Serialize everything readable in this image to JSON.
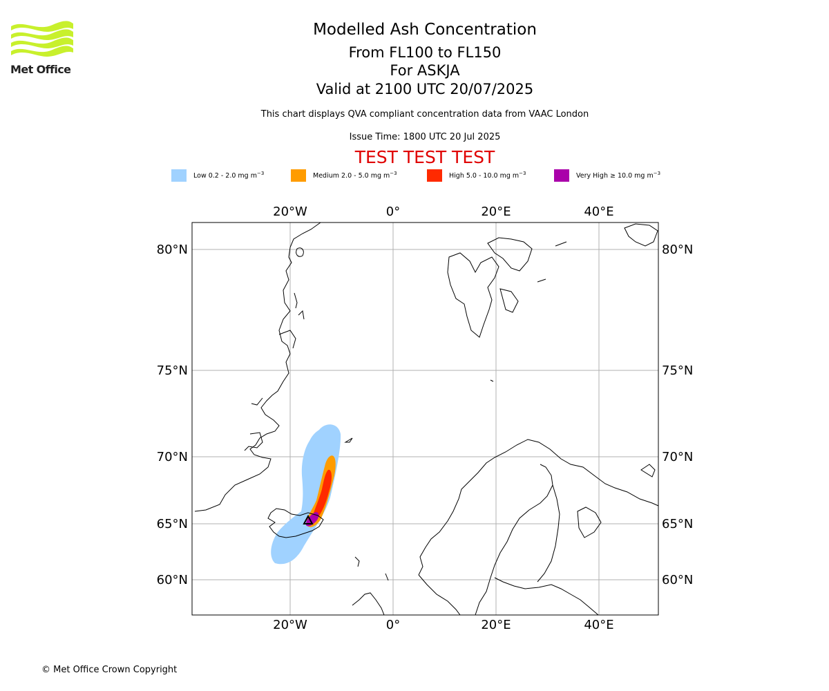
{
  "header": {
    "logo_text": "Met Office",
    "title": "Modelled Ash Concentration",
    "levels": "From FL100 to FL150",
    "volcano": "For ASKJA",
    "valid": "Valid at 2100 UTC 20/07/2025",
    "subtitle": "This chart displays QVA compliant concentration data from VAAC London",
    "issue_time": "Issue Time: 1800 UTC 20 Jul 2025",
    "test_banner": "TEST TEST TEST"
  },
  "legend": [
    {
      "label": "Low 0.2 - 2.0 mg m",
      "exp": "−3",
      "color": "#a0d2ff"
    },
    {
      "label": "Medium 2.0 - 5.0 mg m",
      "exp": "−3",
      "color": "#ff9c00"
    },
    {
      "label": "High 5.0 - 10.0 mg m",
      "exp": "−3",
      "color": "#ff2a00"
    },
    {
      "label": "Very High ≥ 10.0 mg m",
      "exp": "−3",
      "color": "#aa00aa"
    }
  ],
  "map": {
    "lon_ticks_top": [
      "20°W",
      "0°",
      "20°E",
      "40°E"
    ],
    "lon_ticks_bottom": [
      "20°W",
      "0°",
      "20°E",
      "40°E"
    ],
    "lat_ticks_left": [
      "80°N",
      "75°N",
      "70°N",
      "65°N",
      "60°N"
    ],
    "lat_ticks_right": [
      "80°N",
      "75°N",
      "70°N",
      "65°N",
      "60°N"
    ],
    "grid": true,
    "grid_color": "#b0b0b0",
    "coast_color": "#000000",
    "volcano_marker": "triangle-icon"
  },
  "footer": {
    "copyright": "© Met Office Crown Copyright"
  }
}
